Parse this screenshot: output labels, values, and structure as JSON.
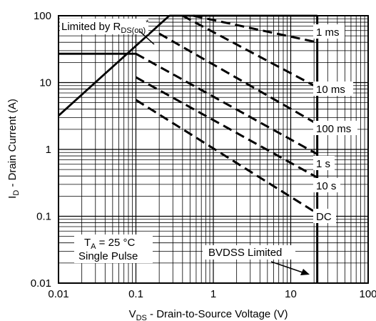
{
  "chart_data": {
    "type": "line",
    "x_scale": "log",
    "y_scale": "log",
    "xlim": [
      0.01,
      100
    ],
    "ylim": [
      0.01,
      100
    ],
    "grid": "on (major and minor)",
    "xlabel": {
      "main": "V",
      "sub": "DS",
      "rest": " - Drain-to-Source Voltage (V)"
    },
    "ylabel": {
      "main": "I",
      "sub": "D",
      "rest": " - Drain Current (A)"
    },
    "x_ticks": [
      {
        "value": 0.01,
        "label": "0.01"
      },
      {
        "value": 0.1,
        "label": "0.1"
      },
      {
        "value": 1,
        "label": "1"
      },
      {
        "value": 10,
        "label": "10"
      },
      {
        "value": 100,
        "label": "100"
      }
    ],
    "y_ticks": [
      {
        "value": 0.01,
        "label": "0.01"
      },
      {
        "value": 0.1,
        "label": "0.1"
      },
      {
        "value": 1,
        "label": "1"
      },
      {
        "value": 10,
        "label": "10"
      },
      {
        "value": 100,
        "label": "100"
      }
    ],
    "rdson_limit": {
      "label": "Limited by R",
      "label_sub": "DS(on)",
      "label_sup": "*",
      "points": [
        [
          0.01,
          3.2
        ],
        [
          0.27,
          100
        ]
      ]
    },
    "current_limits": [
      {
        "name": "top current limit",
        "points": [
          [
            0.27,
            100
          ],
          [
            22,
            100
          ]
        ]
      },
      {
        "name": "package current limit",
        "points": [
          [
            0.01,
            27
          ],
          [
            0.1,
            27
          ]
        ]
      }
    ],
    "bvdss_limit": {
      "vds": 22,
      "label": "BVDSS Limited"
    },
    "series": [
      {
        "name": "1 ms",
        "points": [
          [
            0.55,
            100
          ],
          [
            22,
            40
          ]
        ]
      },
      {
        "name": "10 ms",
        "points": [
          [
            0.4,
            100
          ],
          [
            22,
            8.5
          ]
        ]
      },
      {
        "name": "100 ms",
        "points": [
          [
            0.2,
            54
          ],
          [
            22,
            2.4
          ]
        ]
      },
      {
        "name": "1 s",
        "points": [
          [
            0.1,
            27
          ],
          [
            22,
            0.85
          ]
        ]
      },
      {
        "name": "10 s",
        "points": [
          [
            0.1,
            12
          ],
          [
            22,
            0.38
          ]
        ]
      },
      {
        "name": "DC",
        "points": [
          [
            0.1,
            5.5
          ],
          [
            22,
            0.11
          ]
        ]
      }
    ],
    "annotations": {
      "condition_line1_main": "T",
      "condition_line1_sub": "A",
      "condition_line1_rest": " = 25 °C",
      "condition_line2": "Single Pulse"
    }
  }
}
